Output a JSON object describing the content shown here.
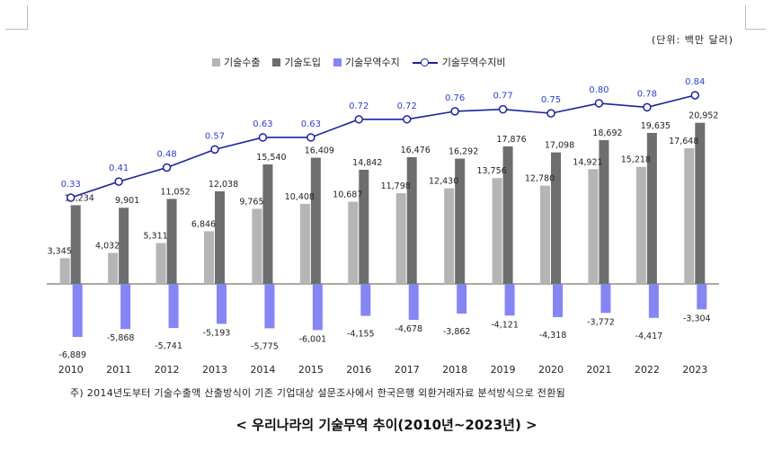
{
  "unit_label": "(단위: 백만 달러)",
  "legend": [
    {
      "label": "기술수출",
      "color": "#b5b5b5",
      "kind": "bar"
    },
    {
      "label": "기술도입",
      "color": "#6e6e6e",
      "kind": "bar"
    },
    {
      "label": "기술무역수지",
      "color": "#8585f5",
      "kind": "bar"
    },
    {
      "label": "기술무역수지비",
      "color": "#1a23a0",
      "kind": "line"
    }
  ],
  "note": "주) 2014년도부터 기술수출액 산출방식이 기존 기업대상 설문조사에서 한국은행 외환거래자료 분석방식으로 전환됨",
  "title": "< 우리나라의 기술무역 추이(2010년~2023년) >",
  "chart_data": {
    "type": "bar",
    "title": "< 우리나라의 기술무역 추이(2010년~2023년) >",
    "categories": [
      "2010",
      "2011",
      "2012",
      "2013",
      "2014",
      "2015",
      "2016",
      "2017",
      "2018",
      "2019",
      "2020",
      "2021",
      "2022",
      "2023"
    ],
    "series": [
      {
        "name": "기술수출",
        "type": "bar",
        "color": "#b5b5b5",
        "values": [
          3345,
          4032,
          5311,
          6846,
          9765,
          10408,
          10687,
          11798,
          12430,
          13756,
          12780,
          14921,
          15218,
          17648
        ],
        "labels": [
          "3,345",
          "4,032",
          "5,311",
          "6,846",
          "9,765",
          "10,408",
          "10,687",
          "11,798",
          "12,430",
          "13,756",
          "12,780",
          "14,921",
          "15,218",
          "17,648"
        ]
      },
      {
        "name": "기술도입",
        "type": "bar",
        "color": "#6e6e6e",
        "values": [
          10234,
          9901,
          11052,
          12038,
          15540,
          16409,
          14842,
          16476,
          16292,
          17876,
          17098,
          18692,
          19635,
          20952
        ],
        "labels": [
          "10,234",
          "9,901",
          "11,052",
          "12,038",
          "15,540",
          "16,409",
          "14,842",
          "16,476",
          "16,292",
          "17,876",
          "17,098",
          "18,692",
          "19,635",
          "20,952"
        ]
      },
      {
        "name": "기술무역수지",
        "type": "bar",
        "color": "#8585f5",
        "values": [
          -6889,
          -5868,
          -5741,
          -5193,
          -5775,
          -6001,
          -4155,
          -4678,
          -3862,
          -4121,
          -4318,
          -3772,
          -4417,
          -3304
        ],
        "labels": [
          "-6,889",
          "-5,868",
          "-5,741",
          "-5,193",
          "-5,775",
          "-6,001",
          "-4,155",
          "-4,678",
          "-3,862",
          "-4,121",
          "-4,318",
          "-3,772",
          "-4,417",
          "-3,304"
        ]
      },
      {
        "name": "기술무역수지비",
        "type": "line",
        "color": "#1a23a0",
        "axis": "secondary",
        "values": [
          0.33,
          0.41,
          0.48,
          0.57,
          0.63,
          0.63,
          0.72,
          0.72,
          0.76,
          0.77,
          0.75,
          0.8,
          0.78,
          0.84
        ],
        "labels": [
          "0.33",
          "0.41",
          "0.48",
          "0.57",
          "0.63",
          "0.63",
          "0.72",
          "0.72",
          "0.76",
          "0.77",
          "0.75",
          "0.80",
          "0.78",
          "0.84"
        ]
      }
    ],
    "ylim": [
      -8000,
      21000
    ],
    "grid": false,
    "legend_position": "top"
  }
}
